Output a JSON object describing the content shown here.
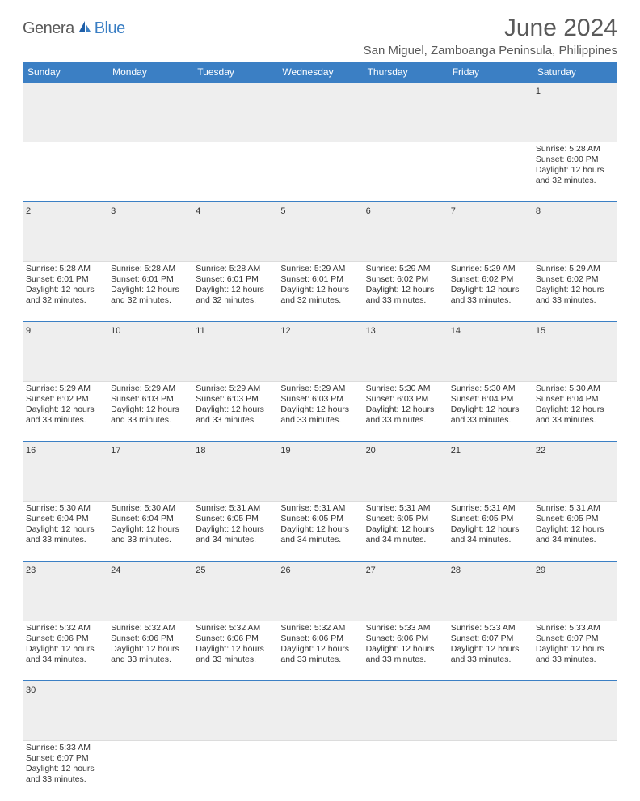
{
  "logo": {
    "part1": "Genera",
    "part2": "Blue"
  },
  "title": "June 2024",
  "location": "San Miguel, Zamboanga Peninsula, Philippines",
  "colors": {
    "header_bg": "#3b7fc4",
    "header_text": "#ffffff",
    "daynum_bg": "#eeeeee",
    "border": "#3b7fc4",
    "text": "#333333",
    "logo_gray": "#5a5a5a",
    "logo_blue": "#3b7fc4"
  },
  "typography": {
    "title_fontsize": 30,
    "location_fontsize": 15,
    "dayheader_fontsize": 12,
    "daynum_fontsize": 11,
    "body_fontsize": 10.5
  },
  "day_headers": [
    "Sunday",
    "Monday",
    "Tuesday",
    "Wednesday",
    "Thursday",
    "Friday",
    "Saturday"
  ],
  "weeks": [
    [
      null,
      null,
      null,
      null,
      null,
      null,
      {
        "n": "1",
        "sr": "5:28 AM",
        "ss": "6:00 PM",
        "dl": "12 hours and 32 minutes."
      }
    ],
    [
      {
        "n": "2",
        "sr": "5:28 AM",
        "ss": "6:01 PM",
        "dl": "12 hours and 32 minutes."
      },
      {
        "n": "3",
        "sr": "5:28 AM",
        "ss": "6:01 PM",
        "dl": "12 hours and 32 minutes."
      },
      {
        "n": "4",
        "sr": "5:28 AM",
        "ss": "6:01 PM",
        "dl": "12 hours and 32 minutes."
      },
      {
        "n": "5",
        "sr": "5:29 AM",
        "ss": "6:01 PM",
        "dl": "12 hours and 32 minutes."
      },
      {
        "n": "6",
        "sr": "5:29 AM",
        "ss": "6:02 PM",
        "dl": "12 hours and 33 minutes."
      },
      {
        "n": "7",
        "sr": "5:29 AM",
        "ss": "6:02 PM",
        "dl": "12 hours and 33 minutes."
      },
      {
        "n": "8",
        "sr": "5:29 AM",
        "ss": "6:02 PM",
        "dl": "12 hours and 33 minutes."
      }
    ],
    [
      {
        "n": "9",
        "sr": "5:29 AM",
        "ss": "6:02 PM",
        "dl": "12 hours and 33 minutes."
      },
      {
        "n": "10",
        "sr": "5:29 AM",
        "ss": "6:03 PM",
        "dl": "12 hours and 33 minutes."
      },
      {
        "n": "11",
        "sr": "5:29 AM",
        "ss": "6:03 PM",
        "dl": "12 hours and 33 minutes."
      },
      {
        "n": "12",
        "sr": "5:29 AM",
        "ss": "6:03 PM",
        "dl": "12 hours and 33 minutes."
      },
      {
        "n": "13",
        "sr": "5:30 AM",
        "ss": "6:03 PM",
        "dl": "12 hours and 33 minutes."
      },
      {
        "n": "14",
        "sr": "5:30 AM",
        "ss": "6:04 PM",
        "dl": "12 hours and 33 minutes."
      },
      {
        "n": "15",
        "sr": "5:30 AM",
        "ss": "6:04 PM",
        "dl": "12 hours and 33 minutes."
      }
    ],
    [
      {
        "n": "16",
        "sr": "5:30 AM",
        "ss": "6:04 PM",
        "dl": "12 hours and 33 minutes."
      },
      {
        "n": "17",
        "sr": "5:30 AM",
        "ss": "6:04 PM",
        "dl": "12 hours and 33 minutes."
      },
      {
        "n": "18",
        "sr": "5:31 AM",
        "ss": "6:05 PM",
        "dl": "12 hours and 34 minutes."
      },
      {
        "n": "19",
        "sr": "5:31 AM",
        "ss": "6:05 PM",
        "dl": "12 hours and 34 minutes."
      },
      {
        "n": "20",
        "sr": "5:31 AM",
        "ss": "6:05 PM",
        "dl": "12 hours and 34 minutes."
      },
      {
        "n": "21",
        "sr": "5:31 AM",
        "ss": "6:05 PM",
        "dl": "12 hours and 34 minutes."
      },
      {
        "n": "22",
        "sr": "5:31 AM",
        "ss": "6:05 PM",
        "dl": "12 hours and 34 minutes."
      }
    ],
    [
      {
        "n": "23",
        "sr": "5:32 AM",
        "ss": "6:06 PM",
        "dl": "12 hours and 34 minutes."
      },
      {
        "n": "24",
        "sr": "5:32 AM",
        "ss": "6:06 PM",
        "dl": "12 hours and 33 minutes."
      },
      {
        "n": "25",
        "sr": "5:32 AM",
        "ss": "6:06 PM",
        "dl": "12 hours and 33 minutes."
      },
      {
        "n": "26",
        "sr": "5:32 AM",
        "ss": "6:06 PM",
        "dl": "12 hours and 33 minutes."
      },
      {
        "n": "27",
        "sr": "5:33 AM",
        "ss": "6:06 PM",
        "dl": "12 hours and 33 minutes."
      },
      {
        "n": "28",
        "sr": "5:33 AM",
        "ss": "6:07 PM",
        "dl": "12 hours and 33 minutes."
      },
      {
        "n": "29",
        "sr": "5:33 AM",
        "ss": "6:07 PM",
        "dl": "12 hours and 33 minutes."
      }
    ],
    [
      {
        "n": "30",
        "sr": "5:33 AM",
        "ss": "6:07 PM",
        "dl": "12 hours and 33 minutes."
      },
      null,
      null,
      null,
      null,
      null,
      null
    ]
  ],
  "labels": {
    "sunrise": "Sunrise: ",
    "sunset": "Sunset: ",
    "daylight": "Daylight: "
  }
}
